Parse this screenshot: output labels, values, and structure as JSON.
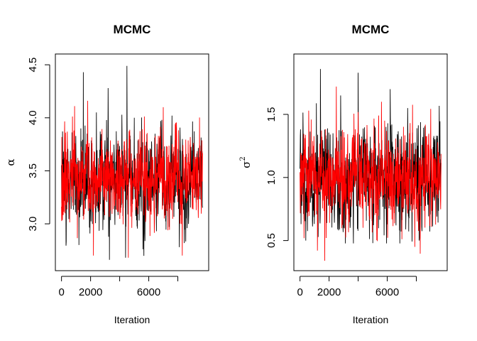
{
  "chart_data": [
    {
      "type": "line",
      "title": "MCMC",
      "xlabel": "Iteration",
      "ylabel": "α",
      "xlim": [
        0,
        9700
      ],
      "ylim": [
        2.64,
        4.52
      ],
      "xticks": [
        0,
        2000,
        6000
      ],
      "xtick_minor": [
        4000,
        8000
      ],
      "yticks": [
        3.0,
        3.5,
        4.0,
        4.5
      ],
      "ytick_labels": [
        "3.0",
        "3.5",
        "4.0",
        "4.5"
      ],
      "n_iterations": 9700,
      "series": [
        {
          "color": "#000000",
          "center": 3.42,
          "sd": 0.22,
          "min": 2.66,
          "max": 4.49,
          "peaks": [
            [
              1500,
              4.43
            ],
            [
              3200,
              4.28
            ],
            [
              4500,
              4.49
            ],
            [
              2400,
              4.05
            ],
            [
              5000,
              4.0
            ],
            [
              7600,
              4.02
            ]
          ],
          "troughs": [
            [
              3300,
              2.66
            ],
            [
              4400,
              2.68
            ],
            [
              5600,
              2.76
            ],
            [
              8100,
              2.78
            ],
            [
              1200,
              2.8
            ]
          ]
        },
        {
          "color": "#ff0000",
          "center": 3.42,
          "sd": 0.2,
          "min": 2.68,
          "max": 4.16,
          "peaks": [
            [
              900,
              4.11
            ],
            [
              1800,
              4.16
            ],
            [
              7000,
              4.1
            ]
          ],
          "troughs": [
            [
              2200,
              2.7
            ],
            [
              4600,
              2.68
            ],
            [
              8300,
              2.7
            ]
          ]
        }
      ]
    },
    {
      "type": "line",
      "title": "MCMC",
      "xlabel": "Iteration",
      "ylabel": "σ",
      "ylabel_superscript": "2",
      "xlim": [
        0,
        9700
      ],
      "ylim": [
        0.33,
        1.91
      ],
      "xticks": [
        0,
        2000,
        6000
      ],
      "xtick_minor": [
        4000,
        8000
      ],
      "yticks": [
        0.5,
        1.0,
        1.5
      ],
      "ytick_labels": [
        "0.5",
        "1.0",
        "1.5"
      ],
      "n_iterations": 9700,
      "series": [
        {
          "color": "#000000",
          "center": 1.0,
          "sd": 0.2,
          "min": 0.45,
          "max": 1.86,
          "peaks": [
            [
              1400,
              1.86
            ],
            [
              4000,
              1.83
            ],
            [
              2800,
              1.65
            ],
            [
              6200,
              1.7
            ],
            [
              7400,
              1.55
            ]
          ],
          "troughs": [
            [
              400,
              0.5
            ],
            [
              5000,
              0.48
            ],
            [
              8200,
              0.5
            ]
          ]
        },
        {
          "color": "#ff0000",
          "center": 1.0,
          "sd": 0.18,
          "min": 0.34,
          "max": 1.72,
          "peaks": [
            [
              2500,
              1.72
            ],
            [
              600,
              1.53
            ],
            [
              5600,
              1.6
            ]
          ],
          "troughs": [
            [
              1700,
              0.34
            ],
            [
              1200,
              0.42
            ],
            [
              7900,
              0.45
            ]
          ]
        }
      ]
    }
  ]
}
